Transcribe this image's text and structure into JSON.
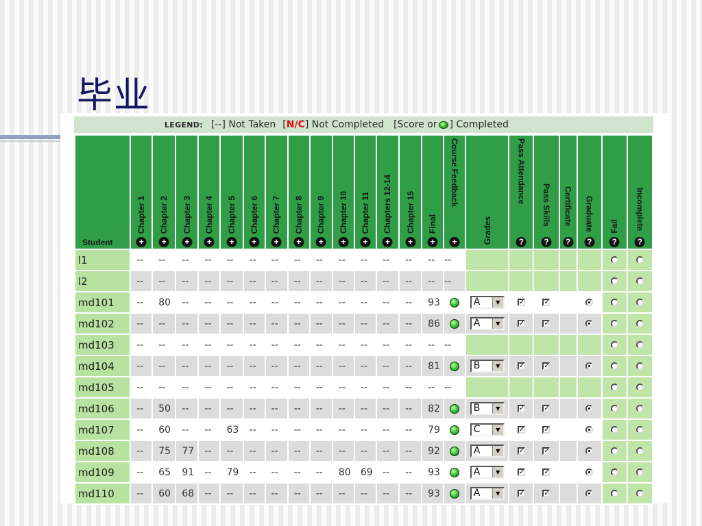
{
  "slide_title": "毕业",
  "legend": {
    "label": "LEGEND:",
    "not_taken": "[--] Not Taken",
    "nc_open": "[",
    "nc": "N/C",
    "nc_close": "] Not Completed",
    "completed_open": "[Score or",
    "completed_close": "] Completed"
  },
  "columns": {
    "student": "Student",
    "chapters": [
      "Chapter 1",
      "Chapter 2",
      "Chapter 3",
      "Chapter 4",
      "Chapter 5",
      "Chapter 6",
      "Chapter 7",
      "Chapter 8",
      "Chapter 9",
      "Chapter 10",
      "Chapter 11",
      "Chapters 12-14",
      "Chapter 15",
      "Final"
    ],
    "course_feedback": "Course Feedback",
    "grades": "Grades",
    "pass_attendance": "Pass Attendance",
    "pass_skills": "Pass Skills",
    "certificate": "Certificate",
    "graduate": "Graduate",
    "fail": "Fail",
    "incomplete": "Incomplete"
  },
  "colors": {
    "header_green": "#2f9e47",
    "name_green": "#b8e2a0",
    "row_grey": "#dcdcdc",
    "legend_bg": "#cfe3cf",
    "title": "#151562"
  },
  "rows": [
    {
      "student": "l1",
      "scores": [
        "--",
        "--",
        "--",
        "--",
        "--",
        "--",
        "--",
        "--",
        "--",
        "--",
        "--",
        "--",
        "--",
        "--"
      ],
      "feedback": "--",
      "grade": "",
      "pass_attendance": false,
      "pass_skills": false,
      "graduate": false,
      "enrolled": false
    },
    {
      "student": "l2",
      "scores": [
        "--",
        "--",
        "--",
        "--",
        "--",
        "--",
        "--",
        "--",
        "--",
        "--",
        "--",
        "--",
        "--",
        "--"
      ],
      "feedback": "--",
      "grade": "",
      "pass_attendance": false,
      "pass_skills": false,
      "graduate": false,
      "enrolled": false
    },
    {
      "student": "md101",
      "scores": [
        "--",
        "80",
        "--",
        "--",
        "--",
        "--",
        "--",
        "--",
        "--",
        "--",
        "--",
        "--",
        "--",
        "93"
      ],
      "feedback": "done",
      "grade": "A",
      "pass_attendance": true,
      "pass_skills": true,
      "graduate": true,
      "enrolled": true
    },
    {
      "student": "md102",
      "scores": [
        "--",
        "--",
        "--",
        "--",
        "--",
        "--",
        "--",
        "--",
        "--",
        "--",
        "--",
        "--",
        "--",
        "86"
      ],
      "feedback": "done",
      "grade": "A",
      "pass_attendance": true,
      "pass_skills": true,
      "graduate": true,
      "enrolled": true
    },
    {
      "student": "md103",
      "scores": [
        "--",
        "--",
        "--",
        "--",
        "--",
        "--",
        "--",
        "--",
        "--",
        "--",
        "--",
        "--",
        "--",
        "--"
      ],
      "feedback": "--",
      "grade": "",
      "pass_attendance": false,
      "pass_skills": false,
      "graduate": false,
      "enrolled": false
    },
    {
      "student": "md104",
      "scores": [
        "--",
        "--",
        "--",
        "--",
        "--",
        "--",
        "--",
        "--",
        "--",
        "--",
        "--",
        "--",
        "--",
        "81"
      ],
      "feedback": "done",
      "grade": "B",
      "pass_attendance": true,
      "pass_skills": true,
      "graduate": true,
      "enrolled": true
    },
    {
      "student": "md105",
      "scores": [
        "--",
        "--",
        "--",
        "--",
        "--",
        "--",
        "--",
        "--",
        "--",
        "--",
        "--",
        "--",
        "--",
        "--"
      ],
      "feedback": "--",
      "grade": "",
      "pass_attendance": false,
      "pass_skills": false,
      "graduate": false,
      "enrolled": false
    },
    {
      "student": "md106",
      "scores": [
        "--",
        "50",
        "--",
        "--",
        "--",
        "--",
        "--",
        "--",
        "--",
        "--",
        "--",
        "--",
        "--",
        "82"
      ],
      "feedback": "done",
      "grade": "B",
      "pass_attendance": true,
      "pass_skills": true,
      "graduate": true,
      "enrolled": true
    },
    {
      "student": "md107",
      "scores": [
        "--",
        "60",
        "--",
        "--",
        "63",
        "--",
        "--",
        "--",
        "--",
        "--",
        "--",
        "--",
        "--",
        "79"
      ],
      "feedback": "done",
      "grade": "C",
      "pass_attendance": true,
      "pass_skills": true,
      "graduate": true,
      "enrolled": true
    },
    {
      "student": "md108",
      "scores": [
        "--",
        "75",
        "77",
        "--",
        "--",
        "--",
        "--",
        "--",
        "--",
        "--",
        "--",
        "--",
        "--",
        "92"
      ],
      "feedback": "done",
      "grade": "A",
      "pass_attendance": true,
      "pass_skills": true,
      "graduate": true,
      "enrolled": true
    },
    {
      "student": "md109",
      "scores": [
        "--",
        "65",
        "91",
        "--",
        "79",
        "--",
        "--",
        "--",
        "--",
        "80",
        "69",
        "--",
        "--",
        "93"
      ],
      "feedback": "done",
      "grade": "A",
      "pass_attendance": true,
      "pass_skills": true,
      "graduate": true,
      "enrolled": true
    },
    {
      "student": "md110",
      "scores": [
        "--",
        "60",
        "68",
        "--",
        "--",
        "--",
        "--",
        "--",
        "--",
        "--",
        "--",
        "--",
        "--",
        "93"
      ],
      "feedback": "done",
      "grade": "A",
      "pass_attendance": true,
      "pass_skills": true,
      "graduate": true,
      "enrolled": true
    }
  ]
}
